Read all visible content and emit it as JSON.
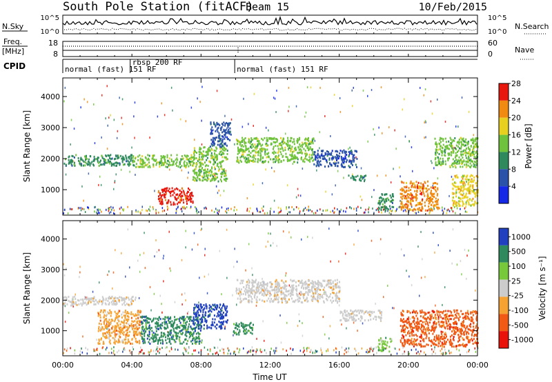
{
  "header": {
    "station": "South Pole Station (fitACF)",
    "beam": "Beam 15",
    "date": "10/Feb/2015"
  },
  "strips": {
    "nsky": {
      "label": "N.Sky",
      "ticks": [
        "10^5",
        "10^0"
      ],
      "right_ticks": [
        "10^5",
        "10^0"
      ],
      "right_label": "N.Search"
    },
    "freq": {
      "label_top": "Freq.",
      "label_bottom": "[MHz]",
      "ticks": [
        "18",
        "8"
      ],
      "right_ticks": [
        "60",
        "0"
      ],
      "right_label": "Nave"
    },
    "cpid": {
      "label": "CPID",
      "segments": [
        {
          "text": "normal (fast) 151 RF",
          "start_h": 0.0
        },
        {
          "text": "rbsp 200 RF",
          "start_h": 3.9
        },
        {
          "text": "normal (fast) 151 RF",
          "start_h": 9.95
        }
      ]
    }
  },
  "axes": {
    "xlabel": "Time UT",
    "xticks": [
      "00:00",
      "04:00",
      "08:00",
      "12:00",
      "16:00",
      "20:00",
      "00:00"
    ],
    "ylabel": "Slant Range [km]",
    "yticks": [
      "1000",
      "2000",
      "3000",
      "4000"
    ]
  },
  "colorbars": {
    "power": {
      "label": "Power [dB]",
      "ticks": [
        "4",
        "8",
        "12",
        "16",
        "20",
        "24",
        "28"
      ]
    },
    "velocity": {
      "label": "Velocity [m s⁻¹]",
      "ticks": [
        "-1000",
        "-500",
        "-100",
        "-25",
        "25",
        "100",
        "500",
        "1000"
      ]
    }
  },
  "chart_data": [
    {
      "type": "heatmap",
      "panel": "power",
      "x_range_hours": [
        0,
        24
      ],
      "y_range_km": [
        180,
        4600
      ],
      "value_unit": "dB",
      "color_scale": [
        {
          "value": 4,
          "color": "#1428e6"
        },
        {
          "value": 8,
          "color": "#2a52a8"
        },
        {
          "value": 12,
          "color": "#2e8a5c"
        },
        {
          "value": 16,
          "color": "#6fc23b"
        },
        {
          "value": 20,
          "color": "#e8d020"
        },
        {
          "value": 24,
          "color": "#f08a10"
        },
        {
          "value": 28,
          "color": "#e8180e"
        }
      ],
      "regions": [
        {
          "t": [
            0.0,
            4.0
          ],
          "r": [
            1800,
            2150
          ],
          "value": 14,
          "desc": "main band"
        },
        {
          "t": [
            4.0,
            7.5
          ],
          "r": [
            1750,
            2150
          ],
          "value": 16
        },
        {
          "t": [
            5.5,
            7.5
          ],
          "r": [
            550,
            1100
          ],
          "value": 28
        },
        {
          "t": [
            7.5,
            9.5
          ],
          "r": [
            1300,
            2400
          ],
          "value": 16
        },
        {
          "t": [
            8.5,
            9.7
          ],
          "r": [
            2400,
            3200
          ],
          "value": 10
        },
        {
          "t": [
            10.0,
            14.5
          ],
          "r": [
            1900,
            2700
          ],
          "value": 16
        },
        {
          "t": [
            14.5,
            17.0
          ],
          "r": [
            1750,
            2300
          ],
          "value": 10
        },
        {
          "t": [
            16.5,
            17.6
          ],
          "r": [
            1300,
            1500
          ],
          "value": 12
        },
        {
          "t": [
            18.2,
            19.1
          ],
          "r": [
            350,
            900
          ],
          "value": 12
        },
        {
          "t": [
            19.5,
            21.7
          ],
          "r": [
            350,
            1300
          ],
          "value": 24
        },
        {
          "t": [
            22.5,
            24.0
          ],
          "r": [
            500,
            1500
          ],
          "value": 20
        },
        {
          "t": [
            21.5,
            24.0
          ],
          "r": [
            1750,
            2700
          ],
          "value": 16
        }
      ]
    },
    {
      "type": "heatmap",
      "panel": "velocity",
      "x_range_hours": [
        0,
        24
      ],
      "y_range_km": [
        180,
        4600
      ],
      "value_unit": "m s⁻¹",
      "color_scale": [
        {
          "value": -1000,
          "color": "#e8120a"
        },
        {
          "value": -500,
          "color": "#f05a14"
        },
        {
          "value": -100,
          "color": "#f5a232"
        },
        {
          "value": -25,
          "color": "#cccccc"
        },
        {
          "value": 25,
          "color": "#cccccc"
        },
        {
          "value": 100,
          "color": "#78c83c"
        },
        {
          "value": 500,
          "color": "#2e8a5c"
        },
        {
          "value": 1000,
          "color": "#2040c0"
        }
      ],
      "regions": [
        {
          "t": [
            0.0,
            4.2
          ],
          "r": [
            1850,
            2150
          ],
          "value": 0
        },
        {
          "t": [
            2.0,
            4.5
          ],
          "r": [
            600,
            1700
          ],
          "value": -100
        },
        {
          "t": [
            4.5,
            8.0
          ],
          "r": [
            600,
            1500
          ],
          "value": 500
        },
        {
          "t": [
            7.5,
            9.5
          ],
          "r": [
            1100,
            1900
          ],
          "value": 1000
        },
        {
          "t": [
            9.8,
            11.0
          ],
          "r": [
            900,
            1300
          ],
          "value": 500
        },
        {
          "t": [
            10.0,
            16.0
          ],
          "r": [
            1950,
            2700
          ],
          "value": 0
        },
        {
          "t": [
            16.0,
            18.5
          ],
          "r": [
            1350,
            1700
          ],
          "value": 0
        },
        {
          "t": [
            18.2,
            19.0
          ],
          "r": [
            350,
            800
          ],
          "value": 100
        },
        {
          "t": [
            19.5,
            24.0
          ],
          "r": [
            500,
            1700
          ],
          "value": -500
        }
      ]
    }
  ]
}
